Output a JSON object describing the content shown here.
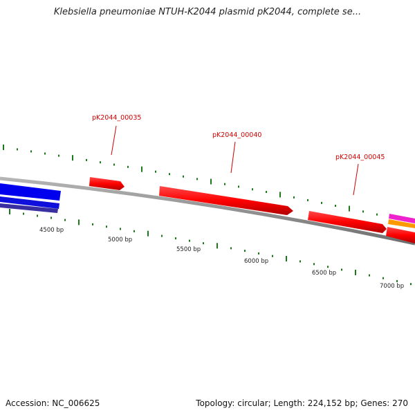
{
  "title": "Klebsiella pneumoniae NTUH-K2044 plasmid pK2044, complete se...",
  "footer": {
    "accession": "Accession: NC_006625",
    "summary": "Topology: circular; Length: 224,152 bp; Genes: 270"
  },
  "colors": {
    "backbone": "#8c8c8c",
    "gene_forward": "#ff0000",
    "gene_label": "#cc0000",
    "tick": "#1a7a1a",
    "blue_gene": "#0000ee",
    "purple_gene": "#3a2fa0",
    "pink_gene": "#ee22cc",
    "orange_gene": "#ff9900"
  },
  "genes": [
    {
      "label": "pK2044_00035"
    },
    {
      "label": "pK2044_00040"
    },
    {
      "label": "pK2044_00045"
    }
  ],
  "bp_ticks": [
    "4500 bp",
    "5000 bp",
    "5500 bp",
    "6000 bp",
    "6500 bp",
    "7000 bp"
  ]
}
